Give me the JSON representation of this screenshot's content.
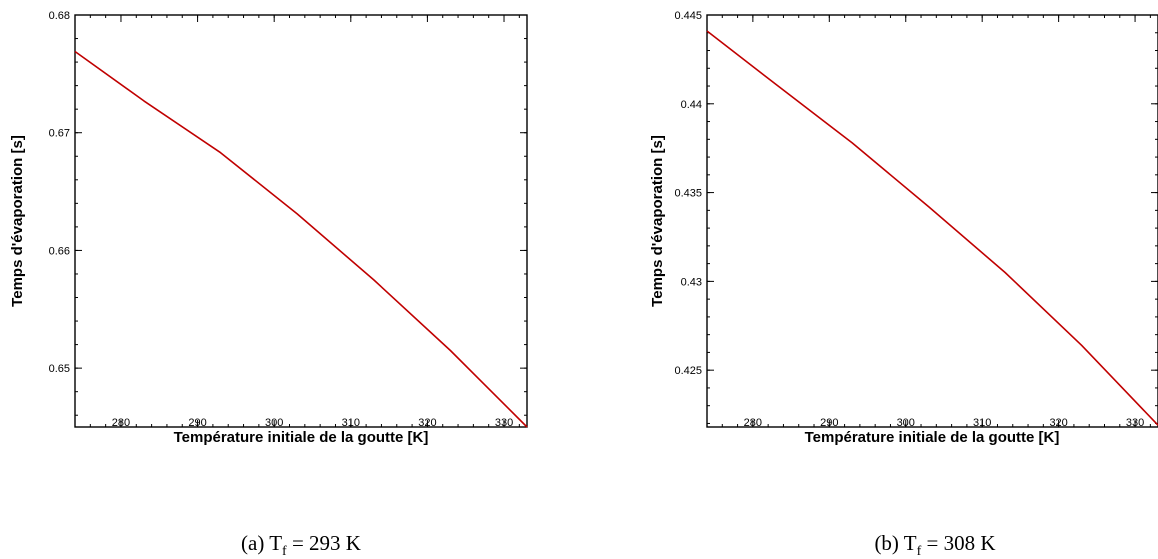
{
  "chart_data": [
    {
      "type": "line",
      "caption": {
        "prefix": "(a) T",
        "subscript": "f",
        "suffix": " = 293 K"
      },
      "xlabel": "Température initiale de la goutte [K]",
      "ylabel": "Temps d'évaporation [s]",
      "xlim": [
        274,
        333
      ],
      "ylim": [
        0.645,
        0.68
      ],
      "xticks": [
        280,
        290,
        300,
        310,
        320,
        330
      ],
      "yticks": [
        0.65,
        0.66,
        0.67,
        0.68
      ],
      "grid": false,
      "series": [
        {
          "color": "#c00000",
          "x": [
            274,
            283,
            293,
            303,
            313,
            323,
            333
          ],
          "y": [
            0.6769,
            0.6727,
            0.6683,
            0.6631,
            0.6575,
            0.6515,
            0.645
          ]
        }
      ]
    },
    {
      "type": "line",
      "caption": {
        "prefix": "(b) T",
        "subscript": "f",
        "suffix": " = 308 K"
      },
      "xlabel": "Température initiale de la goutte [K]",
      "ylabel": "Temps d'évaporation [s]",
      "xlim": [
        274,
        333
      ],
      "ylim": [
        0.4218,
        0.445
      ],
      "xticks": [
        280,
        290,
        300,
        310,
        320,
        330
      ],
      "yticks": [
        0.425,
        0.43,
        0.435,
        0.44,
        0.445
      ],
      "grid": false,
      "series": [
        {
          "color": "#c00000",
          "x": [
            274,
            283,
            293,
            303,
            313,
            323,
            333
          ],
          "y": [
            0.4441,
            0.4411,
            0.4378,
            0.4342,
            0.4305,
            0.4264,
            0.4219
          ]
        }
      ]
    }
  ]
}
